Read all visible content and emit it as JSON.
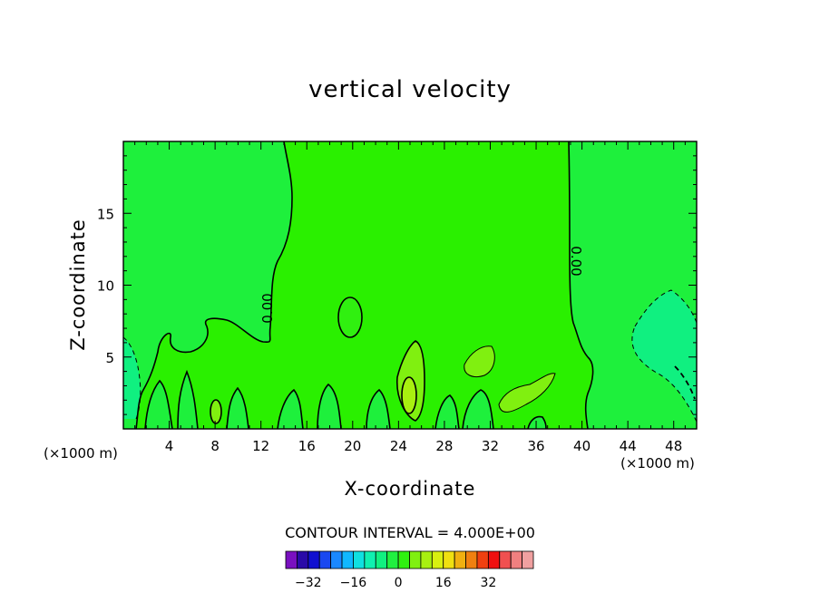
{
  "chart_data": {
    "type": "contour",
    "title": "vertical velocity",
    "xlabel": "X-coordinate",
    "ylabel": "Z-coordinate",
    "x_unit_left": "(×1000 m)",
    "x_unit_right": "(×1000 m)",
    "xlim": [
      0,
      50
    ],
    "ylim": [
      0,
      20
    ],
    "x_ticks": [
      4,
      8,
      12,
      16,
      20,
      24,
      28,
      32,
      36,
      40,
      44,
      48
    ],
    "y_ticks": [
      5,
      10,
      15
    ],
    "contour_interval_text": "CONTOUR INTERVAL = 4.000E+00",
    "contour_label": "0.00",
    "colorbar": {
      "levels": [
        -36,
        -32,
        -28,
        -24,
        -20,
        -16,
        -12,
        -8,
        -4,
        0,
        4,
        8,
        12,
        16,
        20,
        24,
        28,
        32,
        36
      ],
      "tick_values": [
        -32,
        -16,
        0,
        16,
        32
      ],
      "tick_labels": [
        "−32",
        "−16",
        "0",
        "16",
        "32"
      ],
      "colors": [
        "#7a10c0",
        "#2a0aa8",
        "#1010d0",
        "#1a48f0",
        "#1a88ff",
        "#10b8ff",
        "#10e0e0",
        "#10f0b0",
        "#10f080",
        "#20f040",
        "#30f010",
        "#80f010",
        "#a8f010",
        "#d8f010",
        "#f0e010",
        "#f0b010",
        "#f08010",
        "#f04010",
        "#f01010",
        "#f05050",
        "#f08080",
        "#f0a0a0"
      ]
    },
    "background_color": "#20f000"
  }
}
